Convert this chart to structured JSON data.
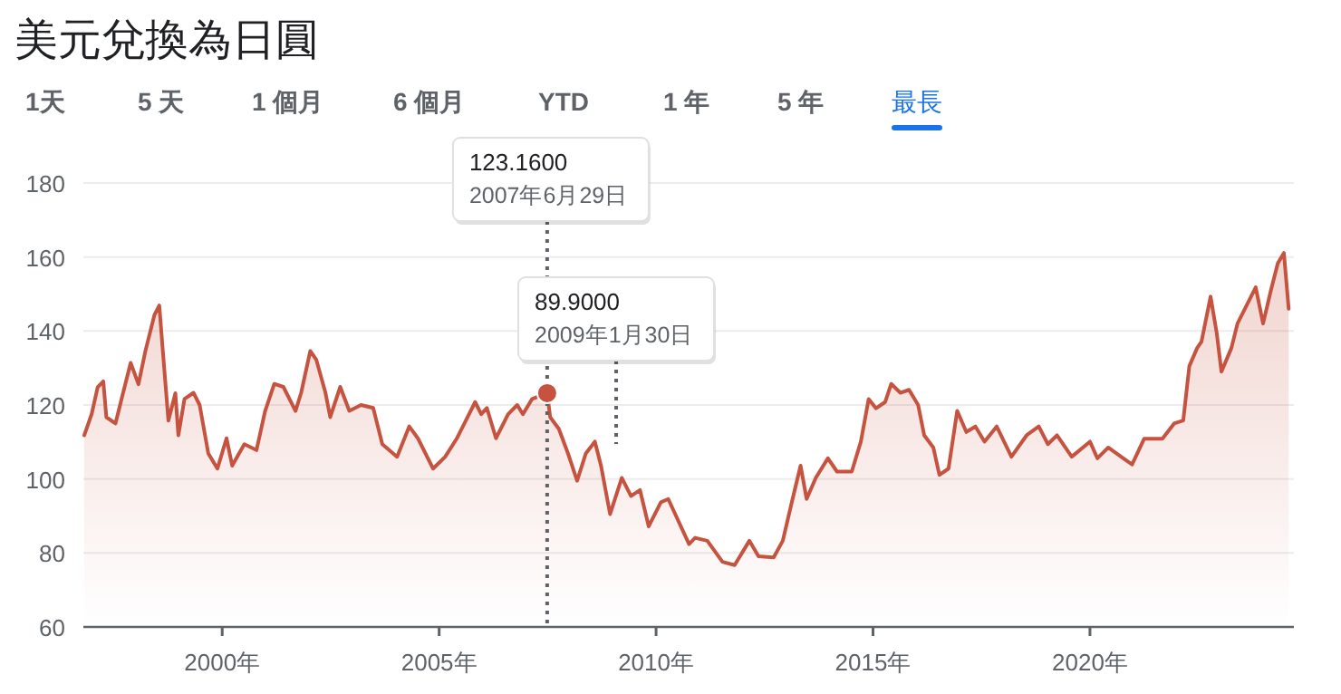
{
  "chart_data": {
    "type": "area",
    "title": "美元兌換為日圓",
    "annotations": [
      "1天",
      "5 天",
      "1 個月",
      "6 個月",
      "YTD",
      "1 年",
      "5 年",
      "最長"
    ],
    "ref_lines": [
      {
        "axis": "x",
        "value": 2007.49,
        "label": "123.1600\n2007年6月29日",
        "color": "#5f6368",
        "line_style": "dotted"
      },
      {
        "axis": "x",
        "value": 2009.08,
        "label": "89.9000\n2009年1月30日",
        "color": "#5f6368",
        "line_style": "dotted"
      }
    ],
    "xlim": [
      1996.8,
      2024.7
    ],
    "ylim": [
      60,
      180
    ],
    "xticks": [
      {
        "value": 2000,
        "label": "2000年"
      },
      {
        "value": 2005,
        "label": "2005年"
      },
      {
        "value": 2010,
        "label": "2010年"
      },
      {
        "value": 2015,
        "label": "2015年"
      },
      {
        "value": 2020,
        "label": "2020年"
      }
    ],
    "yticks": [
      60,
      80,
      100,
      120,
      140,
      160,
      180
    ],
    "grid": "y",
    "marker": "none",
    "line_style": "solid",
    "series": [
      {
        "color": "#c5533f",
        "x": [
          1996.82,
          1996.99,
          1997.13,
          1997.26,
          1997.33,
          1997.54,
          1997.68,
          1997.89,
          1998.07,
          1998.23,
          1998.44,
          1998.55,
          1998.62,
          1998.76,
          1998.92,
          1998.99,
          1999.13,
          1999.34,
          1999.48,
          1999.68,
          1999.89,
          2000.1,
          2000.23,
          2000.51,
          2000.79,
          2000.99,
          2001.2,
          2001.41,
          2001.69,
          2001.82,
          2002.03,
          2002.17,
          2002.38,
          2002.49,
          2002.72,
          2002.93,
          2003.2,
          2003.48,
          2003.69,
          2004.03,
          2004.31,
          2004.51,
          2004.86,
          2005.14,
          2005.41,
          2005.83,
          2005.97,
          2006.1,
          2006.31,
          2006.59,
          2006.8,
          2006.93,
          2007.14,
          2007.49,
          2007.56,
          2007.76,
          2007.97,
          2008.18,
          2008.38,
          2008.59,
          2008.73,
          2008.94,
          2009.21,
          2009.42,
          2009.63,
          2009.83,
          2010.11,
          2010.28,
          2010.76,
          2010.9,
          2011.18,
          2011.53,
          2011.81,
          2012.15,
          2012.36,
          2012.71,
          2012.92,
          2013.13,
          2013.33,
          2013.47,
          2013.68,
          2013.96,
          2014.17,
          2014.51,
          2014.72,
          2014.9,
          2015.07,
          2015.28,
          2015.42,
          2015.63,
          2015.83,
          2016.04,
          2016.18,
          2016.39,
          2016.53,
          2016.74,
          2016.94,
          2017.15,
          2017.36,
          2017.57,
          2017.85,
          2018.19,
          2018.54,
          2018.82,
          2019.03,
          2019.24,
          2019.58,
          2020.0,
          2020.17,
          2020.42,
          2020.97,
          2021.25,
          2021.67,
          2021.94,
          2022.15,
          2022.29,
          2022.47,
          2022.57,
          2022.78,
          2022.92,
          2023.03,
          2023.26,
          2023.4,
          2023.61,
          2023.82,
          2023.99,
          2024.17,
          2024.33,
          2024.47,
          2024.58
        ],
        "values": [
          111.8,
          117.5,
          124.8,
          126.4,
          116.7,
          115,
          121.6,
          131.4,
          125.6,
          134.6,
          144.4,
          146.9,
          136.3,
          115.8,
          123.2,
          111.8,
          121.6,
          123.3,
          120,
          106.9,
          102.8,
          111,
          103.6,
          109.4,
          107.8,
          118.4,
          125.7,
          124.9,
          118.4,
          123.3,
          134.6,
          132.2,
          123.3,
          116.7,
          124.9,
          118.4,
          120,
          119.2,
          109.4,
          106,
          114.2,
          111,
          102.8,
          106,
          111,
          120.8,
          117.5,
          119.2,
          111,
          117.5,
          120,
          117.5,
          121.6,
          123.2,
          116.7,
          113.5,
          106.9,
          99.5,
          106.9,
          110.1,
          103.6,
          90.5,
          100.3,
          95.4,
          97,
          87.2,
          93.7,
          94.6,
          82.4,
          84.1,
          83.3,
          77.6,
          76.7,
          83.3,
          79.1,
          78.8,
          83.3,
          93.8,
          103.6,
          94.6,
          100.3,
          105.6,
          102,
          102,
          110.1,
          121.6,
          119.1,
          120.8,
          125.7,
          123.3,
          124.1,
          120,
          111.8,
          108.5,
          101.1,
          102.8,
          118.4,
          112.7,
          114.2,
          110.1,
          114.2,
          106,
          111.8,
          114.2,
          109.4,
          111.8,
          106,
          110.1,
          105.6,
          108.5,
          103.9,
          110.9,
          110.9,
          115,
          115.8,
          130.5,
          135.4,
          137.1,
          149.3,
          139.6,
          129,
          135.4,
          142,
          146.9,
          151.8,
          142,
          151,
          158.3,
          161.1,
          146
        ]
      }
    ]
  }
}
